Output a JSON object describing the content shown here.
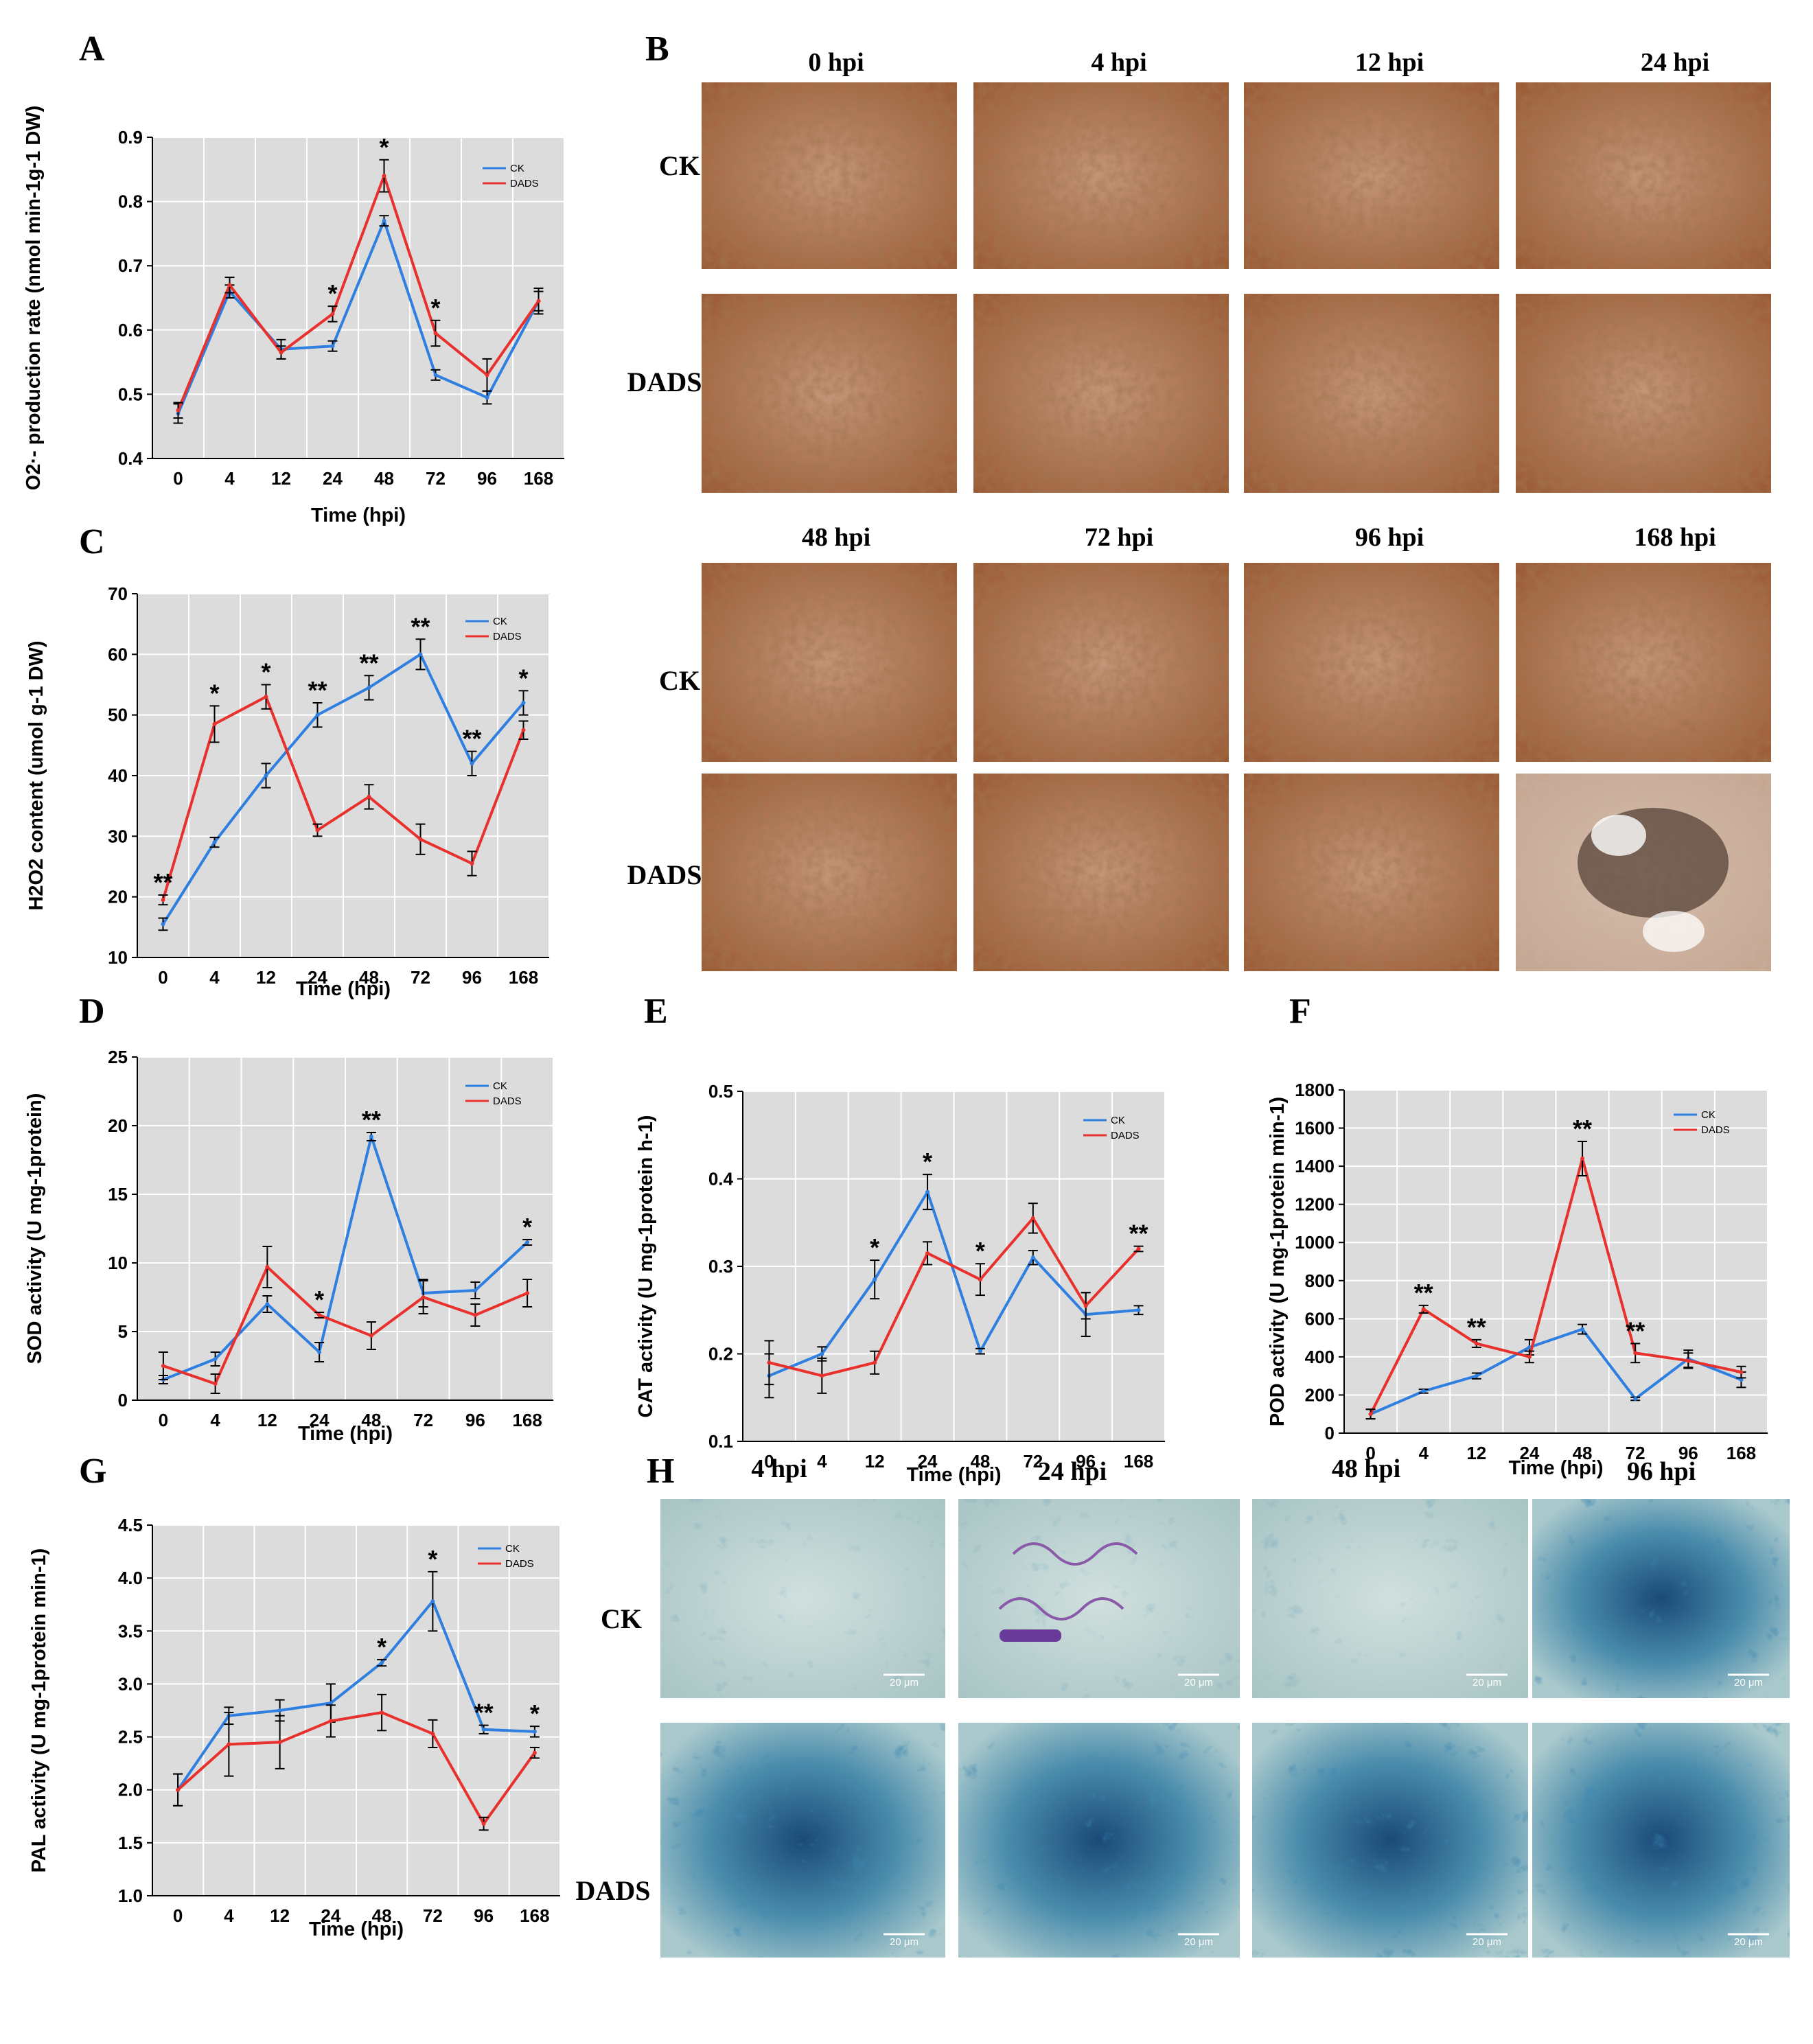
{
  "colors": {
    "ck": "#2e7fe0",
    "dads": "#e8302c",
    "plot_bg": "#dcdcdc",
    "grid": "#ffffff"
  },
  "panel_labels": {
    "A": "A",
    "B": "B",
    "C": "C",
    "D": "D",
    "E": "E",
    "F": "F",
    "G": "G",
    "H": "H"
  },
  "panel_B": {
    "row_labels": [
      "CK",
      "DADS",
      "CK",
      "DADS"
    ],
    "col_labels_top": [
      "0 hpi",
      "4 hpi",
      "12 hpi",
      "24 hpi"
    ],
    "col_labels_bottom": [
      "48 hpi",
      "72 hpi",
      "96 hpi",
      "168 hpi"
    ]
  },
  "panel_H": {
    "row_labels": [
      "CK",
      "DADS"
    ],
    "col_labels": [
      "4 hpi",
      "24 hpi",
      "48 hpi",
      "96 hpi"
    ],
    "scale_bar": "20 μm"
  },
  "chart_data": [
    {
      "id": "A",
      "type": "line",
      "categories": [
        "0",
        "4",
        "12",
        "24",
        "48",
        "72",
        "96",
        "168"
      ],
      "xlabel": "Time (hpi)",
      "ylabel": "O2·- production rate (nmol min-1g-1 DW)",
      "ylim": [
        0.4,
        0.9
      ],
      "yticks": [
        "0.4",
        "0.5",
        "0.6",
        "0.7",
        "0.8",
        "0.9"
      ],
      "series": [
        {
          "name": "CK",
          "values": [
            0.47,
            0.66,
            0.57,
            0.575,
            0.77,
            0.53,
            0.495,
            0.645
          ],
          "errors": [
            0.015,
            0.01,
            0.015,
            0.008,
            0.008,
            0.008,
            0.01,
            0.015
          ]
        },
        {
          "name": "DADS",
          "values": [
            0.475,
            0.67,
            0.565,
            0.625,
            0.84,
            0.595,
            0.53,
            0.645
          ],
          "errors": [
            0.012,
            0.012,
            0.01,
            0.012,
            0.025,
            0.02,
            0.025,
            0.02
          ]
        }
      ],
      "significance": [
        "",
        "",
        "",
        "*",
        "*",
        "*",
        "",
        ""
      ],
      "legend": [
        "CK",
        "DADS"
      ],
      "legend_position": "top-right"
    },
    {
      "id": "C",
      "type": "line",
      "categories": [
        "0",
        "4",
        "12",
        "24",
        "48",
        "72",
        "96",
        "168"
      ],
      "xlabel": "Time (hpi)",
      "ylabel": "H2O2 content (umol g-1 DW)",
      "ylim": [
        10,
        70
      ],
      "yticks": [
        "10",
        "20",
        "30",
        "40",
        "50",
        "60",
        "70"
      ],
      "series": [
        {
          "name": "CK",
          "values": [
            15.5,
            29,
            40,
            50,
            54.5,
            60,
            42,
            52
          ],
          "errors": [
            1,
            0.8,
            2,
            2,
            2,
            2.5,
            2,
            2
          ]
        },
        {
          "name": "DADS",
          "values": [
            19.5,
            48.5,
            53,
            31,
            36.5,
            29.5,
            25.5,
            47.5
          ],
          "errors": [
            0.8,
            3,
            2,
            1,
            2,
            2.5,
            2,
            1.5
          ]
        }
      ],
      "significance": [
        "**",
        "*",
        "*",
        "**",
        "**",
        "**",
        "**",
        "*"
      ],
      "legend": [
        "CK",
        "DADS"
      ],
      "legend_position": "top-right"
    },
    {
      "id": "D",
      "type": "line",
      "categories": [
        "0",
        "4",
        "12",
        "24",
        "48",
        "72",
        "96",
        "168"
      ],
      "xlabel": "Time (hpi)",
      "ylabel": "SOD activity (U mg-1protein)",
      "ylim": [
        0,
        25
      ],
      "yticks": [
        "0",
        "5",
        "10",
        "15",
        "20",
        "25"
      ],
      "series": [
        {
          "name": "CK",
          "values": [
            1.5,
            3,
            7,
            3.5,
            19.2,
            7.8,
            8,
            11.5
          ],
          "errors": [
            0.3,
            0.5,
            0.6,
            0.7,
            0.3,
            1,
            0.6,
            0.2
          ]
        },
        {
          "name": "DADS",
          "values": [
            2.5,
            1.2,
            9.7,
            6.2,
            4.7,
            7.5,
            6.2,
            7.8
          ],
          "errors": [
            1,
            0.7,
            1.5,
            0.2,
            1,
            1.2,
            0.8,
            1
          ]
        }
      ],
      "significance": [
        "",
        "",
        "",
        "*",
        "**",
        "",
        "",
        "*"
      ],
      "legend": [
        "CK",
        "DADS"
      ],
      "legend_position": "top-right"
    },
    {
      "id": "E",
      "type": "line",
      "categories": [
        "0",
        "4",
        "12",
        "24",
        "48",
        "72",
        "96",
        "168"
      ],
      "xlabel": "Time (hpi)",
      "ylabel": "CAT activity (U mg-1protein h-1)",
      "ylim": [
        0.1,
        0.5
      ],
      "yticks": [
        "0.1",
        "0.2",
        "0.3",
        "0.4",
        "0.5"
      ],
      "series": [
        {
          "name": "CK",
          "values": [
            0.175,
            0.2,
            0.285,
            0.385,
            0.203,
            0.31,
            0.245,
            0.25
          ],
          "errors": [
            0.025,
            0.008,
            0.022,
            0.02,
            0.003,
            0.008,
            0.025,
            0.005
          ]
        },
        {
          "name": "DADS",
          "values": [
            0.19,
            0.175,
            0.19,
            0.315,
            0.285,
            0.355,
            0.255,
            0.32
          ],
          "errors": [
            0.025,
            0.02,
            0.013,
            0.013,
            0.018,
            0.017,
            0.015,
            0.003
          ]
        }
      ],
      "significance": [
        "",
        "",
        "*",
        "*",
        "*",
        "",
        "",
        "**"
      ],
      "legend": [
        "CK",
        "DADS"
      ],
      "legend_position": "top-right"
    },
    {
      "id": "F",
      "type": "line",
      "categories": [
        "0",
        "4",
        "12",
        "24",
        "48",
        "72",
        "96",
        "168"
      ],
      "xlabel": "Time (hpi)",
      "ylabel": "POD activity (U mg-1protein min-1)",
      "ylim": [
        0,
        1800
      ],
      "yticks": [
        "0",
        "200",
        "400",
        "600",
        "800",
        "1000",
        "1200",
        "1400",
        "1600",
        "1800"
      ],
      "series": [
        {
          "name": "CK",
          "values": [
            100,
            220,
            300,
            450,
            545,
            180,
            390,
            280
          ],
          "errors": [
            25,
            10,
            15,
            40,
            25,
            8,
            45,
            40
          ]
        },
        {
          "name": "DADS",
          "values": [
            100,
            650,
            470,
            400,
            1440,
            420,
            380,
            320
          ],
          "errors": [
            25,
            20,
            20,
            30,
            90,
            50,
            40,
            30
          ]
        }
      ],
      "significance": [
        "",
        "**",
        "**",
        "",
        "**",
        "**",
        "",
        ""
      ],
      "legend": [
        "CK",
        "DADS"
      ],
      "legend_position": "top-right"
    },
    {
      "id": "G",
      "type": "line",
      "categories": [
        "0",
        "4",
        "12",
        "24",
        "48",
        "72",
        "96",
        "168"
      ],
      "xlabel": "Time (hpi)",
      "ylabel": "PAL activity (U mg-1protein min-1)",
      "ylim": [
        1.0,
        4.5
      ],
      "yticks": [
        "1.0",
        "1.5",
        "2.0",
        "2.5",
        "3.0",
        "3.5",
        "4.0",
        "4.5"
      ],
      "series": [
        {
          "name": "CK",
          "values": [
            2.0,
            2.7,
            2.75,
            2.82,
            3.2,
            3.78,
            2.57,
            2.55
          ],
          "errors": [
            0.15,
            0.08,
            0.1,
            0.18,
            0.03,
            0.28,
            0.04,
            0.05
          ]
        },
        {
          "name": "DADS",
          "values": [
            2.0,
            2.43,
            2.45,
            2.65,
            2.73,
            2.53,
            1.68,
            2.35
          ],
          "errors": [
            0.15,
            0.3,
            0.25,
            0.15,
            0.17,
            0.13,
            0.06,
            0.05
          ]
        }
      ],
      "significance": [
        "",
        "",
        "",
        "",
        "*",
        "*",
        "**",
        "*"
      ],
      "legend": [
        "CK",
        "DADS"
      ],
      "legend_position": "top-right"
    }
  ]
}
